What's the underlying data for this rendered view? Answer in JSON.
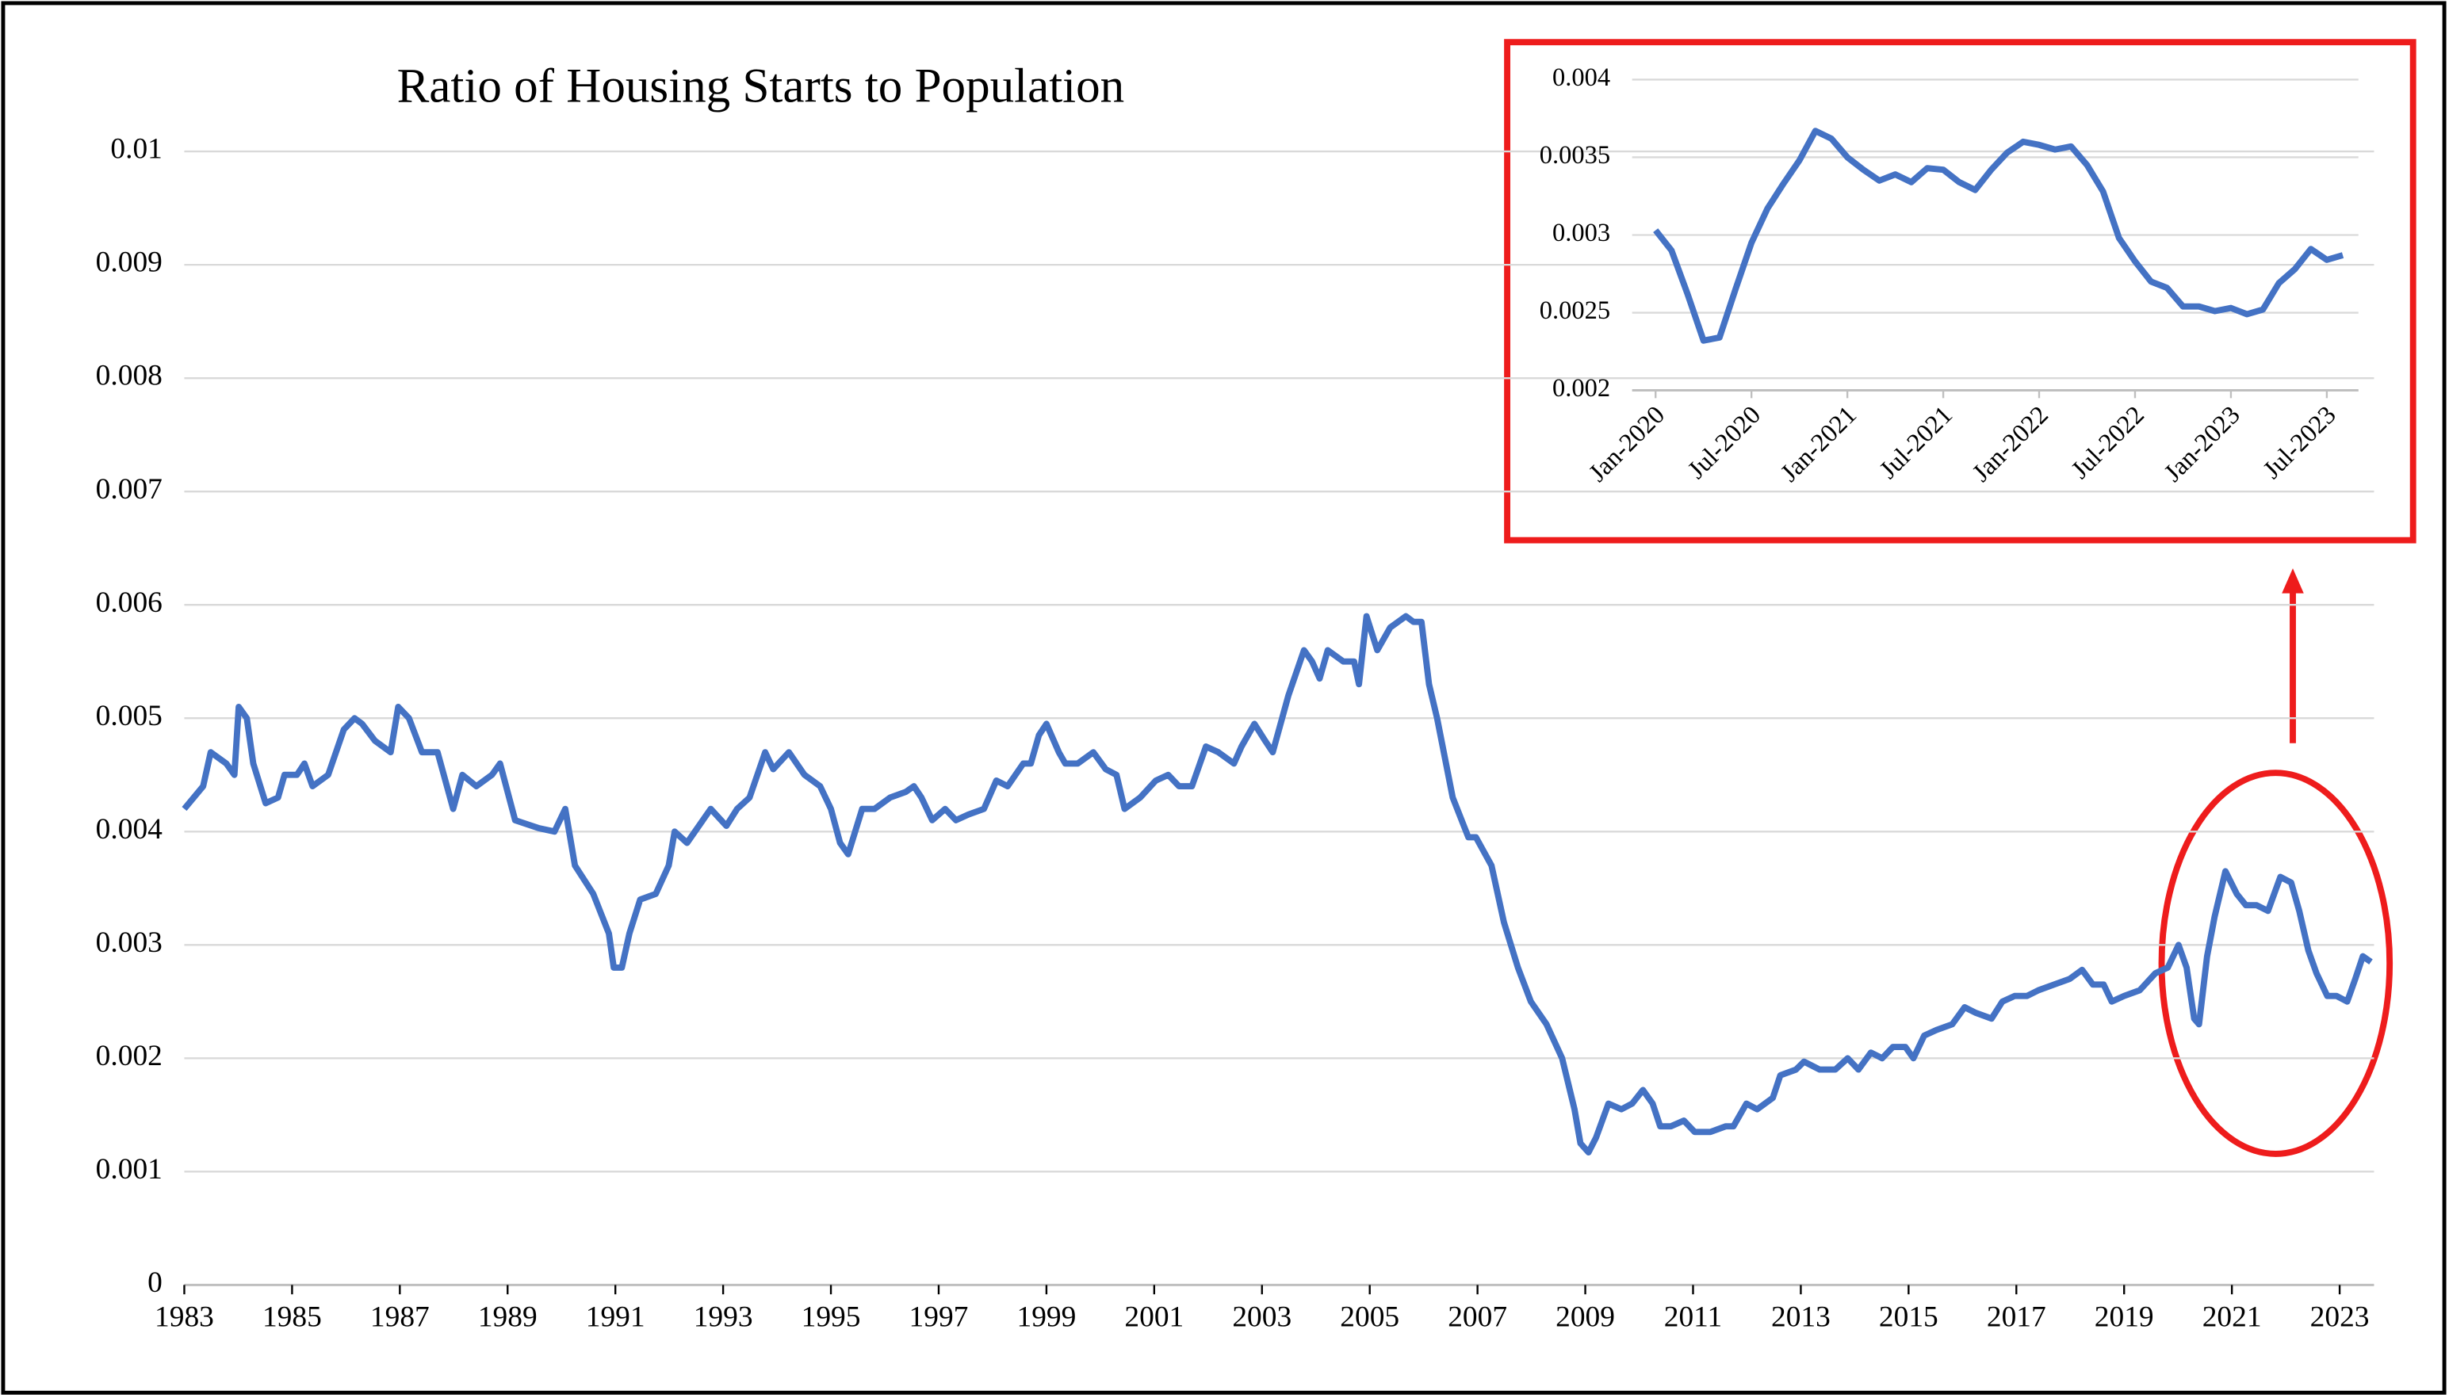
{
  "chart_data": [
    {
      "type": "line",
      "title": "Ratio of Housing Starts to Population",
      "color": "#4472c4",
      "grid": true,
      "xlim": [
        1983,
        2023.58
      ],
      "ylim": [
        0,
        0.01
      ],
      "xticks": [
        1983,
        1985,
        1987,
        1989,
        1991,
        1993,
        1995,
        1997,
        1999,
        2001,
        2003,
        2005,
        2007,
        2009,
        2011,
        2013,
        2015,
        2017,
        2019,
        2021,
        2023
      ],
      "yticks": [
        0,
        0.001,
        0.002,
        0.003,
        0.004,
        0.005,
        0.006,
        0.007,
        0.008,
        0.009,
        0.01
      ],
      "x": [
        1983.0,
        1983.35,
        1983.49,
        1983.78,
        1983.93,
        1984.01,
        1984.16,
        1984.28,
        1984.51,
        1984.74,
        1984.86,
        1985.09,
        1985.23,
        1985.38,
        1985.67,
        1985.96,
        1986.16,
        1986.3,
        1986.54,
        1986.83,
        1986.97,
        1987.17,
        1987.41,
        1987.7,
        1987.99,
        1988.16,
        1988.42,
        1988.71,
        1988.86,
        1989.14,
        1989.58,
        1989.87,
        1990.07,
        1990.25,
        1990.59,
        1990.88,
        1990.97,
        1991.12,
        1991.26,
        1991.46,
        1991.75,
        1991.99,
        1992.1,
        1992.33,
        1992.77,
        1993.06,
        1993.26,
        1993.49,
        1993.78,
        1993.93,
        1994.22,
        1994.51,
        1994.8,
        1995.0,
        1995.17,
        1995.32,
        1995.58,
        1995.81,
        1996.1,
        1996.39,
        1996.54,
        1996.68,
        1996.88,
        1997.12,
        1997.32,
        1997.55,
        1997.84,
        1998.07,
        1998.28,
        1998.57,
        1998.71,
        1998.86,
        1999.0,
        1999.23,
        1999.35,
        1999.58,
        1999.87,
        2000.1,
        2000.3,
        2000.45,
        2000.74,
        2001.03,
        2001.26,
        2001.46,
        2001.7,
        2001.96,
        2002.19,
        2002.48,
        2002.62,
        2002.86,
        2003.06,
        2003.2,
        2003.49,
        2003.78,
        2003.93,
        2004.07,
        2004.22,
        2004.51,
        2004.71,
        2004.8,
        2004.94,
        2005.14,
        2005.38,
        2005.67,
        2005.81,
        2005.96,
        2006.1,
        2006.25,
        2006.54,
        2006.83,
        2006.97,
        2007.26,
        2007.49,
        2007.75,
        2007.99,
        2008.28,
        2008.57,
        2008.8,
        2008.91,
        2009.06,
        2009.2,
        2009.43,
        2009.67,
        2009.87,
        2010.07,
        2010.25,
        2010.39,
        2010.59,
        2010.83,
        2011.03,
        2011.32,
        2011.61,
        2011.75,
        2011.99,
        2012.19,
        2012.48,
        2012.62,
        2012.91,
        2013.06,
        2013.35,
        2013.64,
        2013.87,
        2014.07,
        2014.3,
        2014.51,
        2014.71,
        2014.94,
        2015.09,
        2015.29,
        2015.52,
        2015.81,
        2016.04,
        2016.25,
        2016.54,
        2016.74,
        2016.97,
        2017.2,
        2017.41,
        2017.7,
        2017.99,
        2018.22,
        2018.42,
        2018.62,
        2018.77,
        2019.0,
        2019.29,
        2019.58,
        2019.81,
        2020.01,
        2020.16,
        2020.3,
        2020.39,
        2020.54,
        2020.68,
        2020.88,
        2021.09,
        2021.26,
        2021.46,
        2021.67,
        2021.9,
        2022.1,
        2022.25,
        2022.42,
        2022.57,
        2022.77,
        2022.94,
        2023.14,
        2023.29,
        2023.43,
        2023.58
      ],
      "values": [
        0.0042,
        0.0044,
        0.0047,
        0.0046,
        0.0045,
        0.0051,
        0.005,
        0.0046,
        0.00425,
        0.0043,
        0.0045,
        0.0045,
        0.0046,
        0.0044,
        0.0045,
        0.0049,
        0.005,
        0.00495,
        0.0048,
        0.0047,
        0.0051,
        0.005,
        0.0047,
        0.0047,
        0.0042,
        0.0045,
        0.0044,
        0.0045,
        0.0046,
        0.0041,
        0.00403,
        0.004,
        0.0042,
        0.0037,
        0.00345,
        0.0031,
        0.0028,
        0.0028,
        0.0031,
        0.0034,
        0.00345,
        0.0037,
        0.004,
        0.0039,
        0.0042,
        0.00405,
        0.0042,
        0.0043,
        0.0047,
        0.00455,
        0.0047,
        0.0045,
        0.0044,
        0.0042,
        0.0039,
        0.0038,
        0.0042,
        0.0042,
        0.0043,
        0.00435,
        0.0044,
        0.0043,
        0.0041,
        0.0042,
        0.0041,
        0.00415,
        0.0042,
        0.00445,
        0.0044,
        0.0046,
        0.0046,
        0.00485,
        0.00495,
        0.0047,
        0.0046,
        0.0046,
        0.0047,
        0.00455,
        0.0045,
        0.0042,
        0.0043,
        0.00445,
        0.0045,
        0.0044,
        0.0044,
        0.00475,
        0.0047,
        0.0046,
        0.00475,
        0.00495,
        0.0048,
        0.0047,
        0.0052,
        0.0056,
        0.0055,
        0.00535,
        0.0056,
        0.0055,
        0.0055,
        0.0053,
        0.0059,
        0.0056,
        0.0058,
        0.0059,
        0.00585,
        0.00585,
        0.0053,
        0.005,
        0.0043,
        0.00395,
        0.00395,
        0.0037,
        0.0032,
        0.0028,
        0.0025,
        0.0023,
        0.002,
        0.00155,
        0.00125,
        0.00117,
        0.0013,
        0.0016,
        0.00155,
        0.0016,
        0.00172,
        0.0016,
        0.0014,
        0.0014,
        0.00145,
        0.00135,
        0.00135,
        0.0014,
        0.0014,
        0.0016,
        0.00155,
        0.00165,
        0.00185,
        0.0019,
        0.00197,
        0.0019,
        0.0019,
        0.002,
        0.0019,
        0.00205,
        0.002,
        0.0021,
        0.0021,
        0.002,
        0.0022,
        0.00225,
        0.0023,
        0.00245,
        0.0024,
        0.00235,
        0.0025,
        0.00255,
        0.00255,
        0.0026,
        0.00265,
        0.0027,
        0.00278,
        0.00265,
        0.00265,
        0.0025,
        0.00255,
        0.0026,
        0.00275,
        0.0028,
        0.003,
        0.0028,
        0.00235,
        0.0023,
        0.0029,
        0.00325,
        0.00365,
        0.00345,
        0.00335,
        0.00335,
        0.0033,
        0.0036,
        0.00355,
        0.0033,
        0.00295,
        0.00275,
        0.00255,
        0.00255,
        0.0025,
        0.0027,
        0.0029,
        0.00285
      ]
    },
    {
      "type": "line",
      "color": "#4472c4",
      "grid": true,
      "ylim": [
        0.002,
        0.004
      ],
      "yticks": [
        0.002,
        0.0025,
        0.003,
        0.0035,
        0.004
      ],
      "categories": [
        "Jan-2020",
        null,
        null,
        null,
        null,
        null,
        "Jul-2020",
        null,
        null,
        null,
        null,
        null,
        "Jan-2021",
        null,
        null,
        null,
        null,
        null,
        "Jul-2021",
        null,
        null,
        null,
        null,
        null,
        "Jan-2022",
        null,
        null,
        null,
        null,
        null,
        "Jul-2022",
        null,
        null,
        null,
        null,
        null,
        "Jan-2023",
        null,
        null,
        null,
        null,
        null,
        "Jul-2023",
        null
      ],
      "values": [
        0.00303,
        0.0029,
        0.00262,
        0.00232,
        0.00234,
        0.00265,
        0.00295,
        0.00317,
        0.00333,
        0.00348,
        0.00367,
        0.00362,
        0.0035,
        0.00342,
        0.00335,
        0.00339,
        0.00334,
        0.00343,
        0.00342,
        0.00334,
        0.00329,
        0.00342,
        0.00353,
        0.0036,
        0.00358,
        0.00355,
        0.00357,
        0.00345,
        0.00328,
        0.00298,
        0.00283,
        0.0027,
        0.00266,
        0.00254,
        0.00254,
        0.00251,
        0.00253,
        0.00249,
        0.00252,
        0.00269,
        0.00278,
        0.00291,
        0.00284,
        0.00287
      ]
    }
  ]
}
